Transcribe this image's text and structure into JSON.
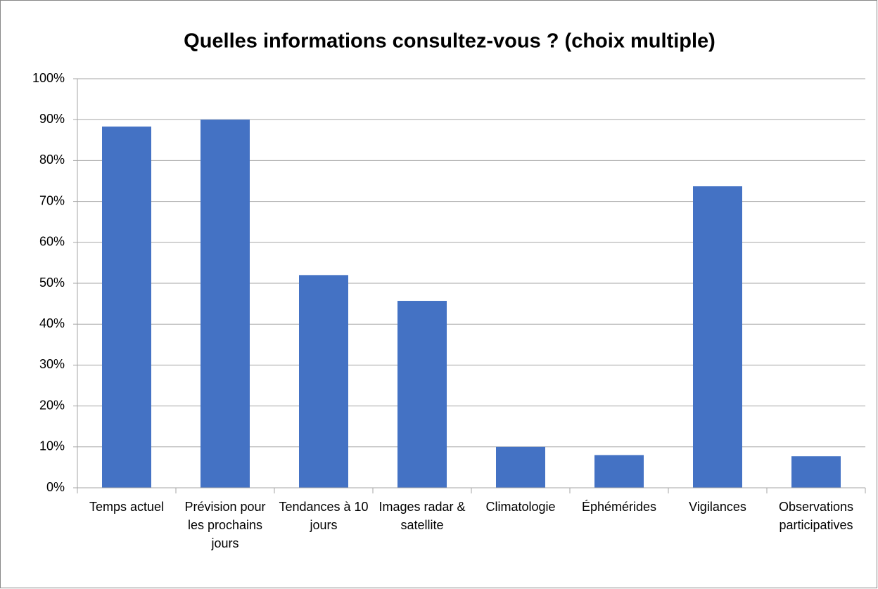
{
  "chart_data": {
    "type": "bar",
    "title": "Quelles informations consultez-vous ? (choix multiple)",
    "categories": [
      "Temps actuel",
      "Prévision pour les prochains jours",
      "Tendances à 10 jours",
      "Images radar & satellite",
      "Climatologie",
      "Éphémérides",
      "Vigilances",
      "Observations participatives"
    ],
    "values": [
      88.3,
      90,
      52,
      45.7,
      10,
      8,
      73.7,
      7.7
    ],
    "color": "#4472c4",
    "ylim": [
      0,
      100
    ],
    "yticks": [
      {
        "value": 0,
        "label": "0%"
      },
      {
        "value": 10,
        "label": "10%"
      },
      {
        "value": 20,
        "label": "20%"
      },
      {
        "value": 30,
        "label": "30%"
      },
      {
        "value": 40,
        "label": "40%"
      },
      {
        "value": 50,
        "label": "50%"
      },
      {
        "value": 60,
        "label": "60%"
      },
      {
        "value": 70,
        "label": "70%"
      },
      {
        "value": 80,
        "label": "80%"
      },
      {
        "value": 90,
        "label": "90%"
      },
      {
        "value": 100,
        "label": "100%"
      }
    ],
    "grid": true
  }
}
